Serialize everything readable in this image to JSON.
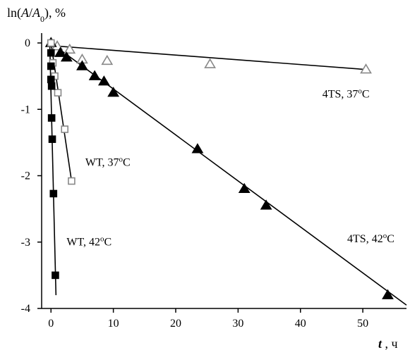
{
  "chart_data": {
    "type": "scatter",
    "ylabel": "ln(A/A0), %",
    "xlabel": "t, ч",
    "xlim": [
      -1.5,
      57
    ],
    "ylim": [
      -4,
      0
    ],
    "xticks": [
      0,
      10,
      20,
      30,
      40,
      50
    ],
    "yticks": [
      0,
      -1,
      -2,
      -3,
      -4
    ],
    "grid": false,
    "series": [
      {
        "name": "4TS, 37°C",
        "marker": "open-triangle",
        "points": [
          [
            0,
            0
          ],
          [
            1,
            -0.05
          ],
          [
            3,
            -0.1
          ],
          [
            5,
            -0.25
          ],
          [
            9,
            -0.27
          ],
          [
            25.5,
            -0.32
          ],
          [
            50.5,
            -0.4
          ]
        ],
        "fit": [
          [
            0,
            -0.04
          ],
          [
            50.5,
            -0.4
          ]
        ]
      },
      {
        "name": "4TS, 42°C",
        "marker": "filled-triangle",
        "points": [
          [
            0,
            0
          ],
          [
            1.5,
            -0.15
          ],
          [
            2.5,
            -0.22
          ],
          [
            5,
            -0.35
          ],
          [
            7,
            -0.5
          ],
          [
            8.5,
            -0.58
          ],
          [
            10,
            -0.75
          ],
          [
            23.5,
            -1.6
          ],
          [
            31,
            -2.2
          ],
          [
            34.5,
            -2.45
          ],
          [
            54,
            -3.8
          ]
        ],
        "fit": [
          [
            0,
            0
          ],
          [
            57,
            -3.95
          ]
        ]
      },
      {
        "name": "WT, 37°C",
        "marker": "open-square",
        "points": [
          [
            0,
            0
          ],
          [
            0.3,
            -0.3
          ],
          [
            0.6,
            -0.5
          ],
          [
            1.1,
            -0.75
          ],
          [
            2.2,
            -1.3
          ],
          [
            3.3,
            -2.08
          ]
        ],
        "fit": [
          [
            0,
            0
          ],
          [
            3.3,
            -2.08
          ]
        ]
      },
      {
        "name": "WT, 42°C",
        "marker": "filled-square",
        "points": [
          [
            0,
            -0.15
          ],
          [
            0,
            -0.35
          ],
          [
            0,
            -0.55
          ],
          [
            0.1,
            -0.65
          ],
          [
            0.1,
            -1.13
          ],
          [
            0.2,
            -1.45
          ],
          [
            0.4,
            -2.27
          ],
          [
            0.7,
            -3.5
          ]
        ],
        "fit": [
          [
            -0.2,
            0
          ],
          [
            0.8,
            -3.8
          ]
        ]
      }
    ],
    "annotations": [
      {
        "text": "4TS, 37",
        "deg": "o",
        "unit": "C",
        "x": 43.5,
        "y": -0.82
      },
      {
        "text": "WT, 37",
        "deg": "o",
        "unit": "C",
        "x": 5.5,
        "y": -1.85
      },
      {
        "text": "WT, 42",
        "deg": "o",
        "unit": "C",
        "x": 2.5,
        "y": -3.05
      },
      {
        "text": "4TS, 42",
        "deg": "o",
        "unit": "C",
        "x": 47.5,
        "y": -3.0
      }
    ],
    "colors": {
      "axis": "#000000",
      "line": "#000000",
      "marker": "#000000"
    }
  }
}
